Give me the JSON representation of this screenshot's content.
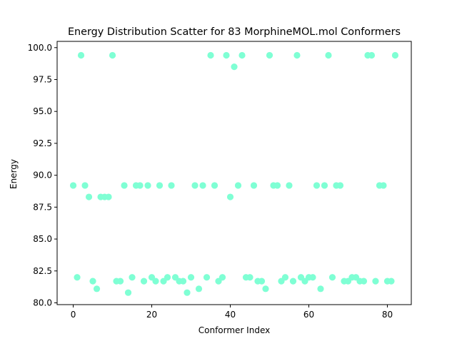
{
  "chart_data": {
    "type": "scatter",
    "title": "Energy Distribution Scatter for 83 MorphineMOL.mol Conformers",
    "xlabel": "Conformer Index",
    "ylabel": "Energy",
    "xlim": [
      -4.1,
      86.1
    ],
    "ylim": [
      79.86,
      100.49
    ],
    "x_ticks": [
      0,
      20,
      40,
      60,
      80
    ],
    "x_tick_labels": [
      "0",
      "20",
      "40",
      "60",
      "80"
    ],
    "y_ticks": [
      80.0,
      82.5,
      85.0,
      87.5,
      90.0,
      92.5,
      95.0,
      97.5,
      100.0
    ],
    "y_tick_labels": [
      "80.0",
      "82.5",
      "85.0",
      "87.5",
      "90.0",
      "92.5",
      "95.0",
      "97.5",
      "100.0"
    ],
    "grid": false,
    "legend": "none",
    "marker_color": "#7fffd4",
    "series": [
      {
        "x": [
          0,
          1,
          2,
          3,
          4,
          5,
          6,
          7,
          8,
          9,
          10,
          11,
          12,
          13,
          14,
          15,
          16,
          17,
          18,
          19,
          20,
          21,
          22,
          23,
          24,
          25,
          26,
          27,
          28,
          29,
          30,
          31,
          32,
          33,
          34,
          35,
          36,
          37,
          38,
          39,
          40,
          41,
          42,
          43,
          44,
          45,
          46,
          47,
          48,
          49,
          50,
          51,
          52,
          53,
          54,
          55,
          56,
          57,
          58,
          59,
          60,
          61,
          62,
          63,
          64,
          65,
          66,
          67,
          68,
          69,
          70,
          71,
          72,
          73,
          74,
          75,
          76,
          77,
          78,
          79,
          80,
          81,
          82
        ],
        "values": [
          89.2,
          82.0,
          99.4,
          89.2,
          88.3,
          81.7,
          81.1,
          88.3,
          88.3,
          88.3,
          99.4,
          81.7,
          81.7,
          89.2,
          80.8,
          82.0,
          89.2,
          89.2,
          81.7,
          89.2,
          82.0,
          81.7,
          89.2,
          81.7,
          82.0,
          89.2,
          82.0,
          81.7,
          81.7,
          80.8,
          82.0,
          89.2,
          81.1,
          89.2,
          82.0,
          99.4,
          89.2,
          81.7,
          82.0,
          99.4,
          88.3,
          98.5,
          89.2,
          99.4,
          82.0,
          82.0,
          89.2,
          81.7,
          81.7,
          81.1,
          99.4,
          89.2,
          89.2,
          81.7,
          82.0,
          89.2,
          81.7,
          99.4,
          82.0,
          81.7,
          82.0,
          82.0,
          89.2,
          81.1,
          89.2,
          99.4,
          82.0,
          89.2,
          89.2,
          81.7,
          81.7,
          82.0,
          82.0,
          81.7,
          81.7,
          99.4,
          99.4,
          81.7,
          89.2,
          89.2,
          81.7,
          81.7,
          99.4
        ]
      }
    ]
  }
}
